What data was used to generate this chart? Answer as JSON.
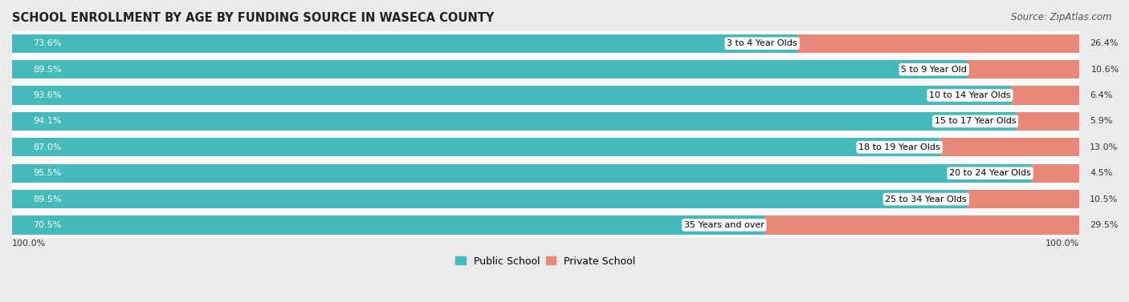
{
  "title": "SCHOOL ENROLLMENT BY AGE BY FUNDING SOURCE IN WASECA COUNTY",
  "source": "Source: ZipAtlas.com",
  "categories": [
    "3 to 4 Year Olds",
    "5 to 9 Year Old",
    "10 to 14 Year Olds",
    "15 to 17 Year Olds",
    "18 to 19 Year Olds",
    "20 to 24 Year Olds",
    "25 to 34 Year Olds",
    "35 Years and over"
  ],
  "public_values": [
    73.6,
    89.5,
    93.6,
    94.1,
    87.0,
    95.5,
    89.5,
    70.5
  ],
  "private_values": [
    26.4,
    10.6,
    6.4,
    5.9,
    13.0,
    4.5,
    10.5,
    29.5
  ],
  "public_color": "#45BABA",
  "private_color": "#E8897A",
  "background_color": "#EBEBEB",
  "bar_bg_color": "#FAFAFA",
  "label_bg_color": "#FFFFFF",
  "title_fontsize": 10.5,
  "source_fontsize": 8.5,
  "bar_label_fontsize": 8,
  "category_fontsize": 8,
  "legend_fontsize": 9,
  "axis_label_fontsize": 8,
  "x_left_label": "100.0%",
  "x_right_label": "100.0%",
  "legend_public": "Public School",
  "legend_private": "Private School"
}
